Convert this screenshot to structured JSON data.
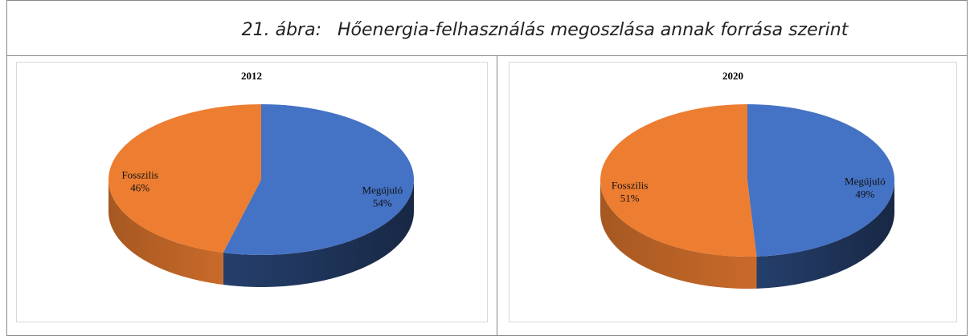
{
  "caption": {
    "label": "21. ábra:",
    "text": "Hőenergia-felhasználás megoszlása annak forrása szerint"
  },
  "chart_data": [
    {
      "type": "pie",
      "title": "2012",
      "categories": [
        "Megújuló",
        "Fosszilis"
      ],
      "values": [
        54,
        46
      ],
      "value_labels": [
        "54%",
        "46%"
      ],
      "colors": [
        "#4472c4",
        "#ed7d31"
      ]
    },
    {
      "type": "pie",
      "title": "2020",
      "categories": [
        "Megújuló",
        "Fosszilis"
      ],
      "values": [
        49,
        51
      ],
      "value_labels": [
        "49%",
        "51%"
      ],
      "colors": [
        "#4472c4",
        "#ed7d31"
      ]
    }
  ]
}
